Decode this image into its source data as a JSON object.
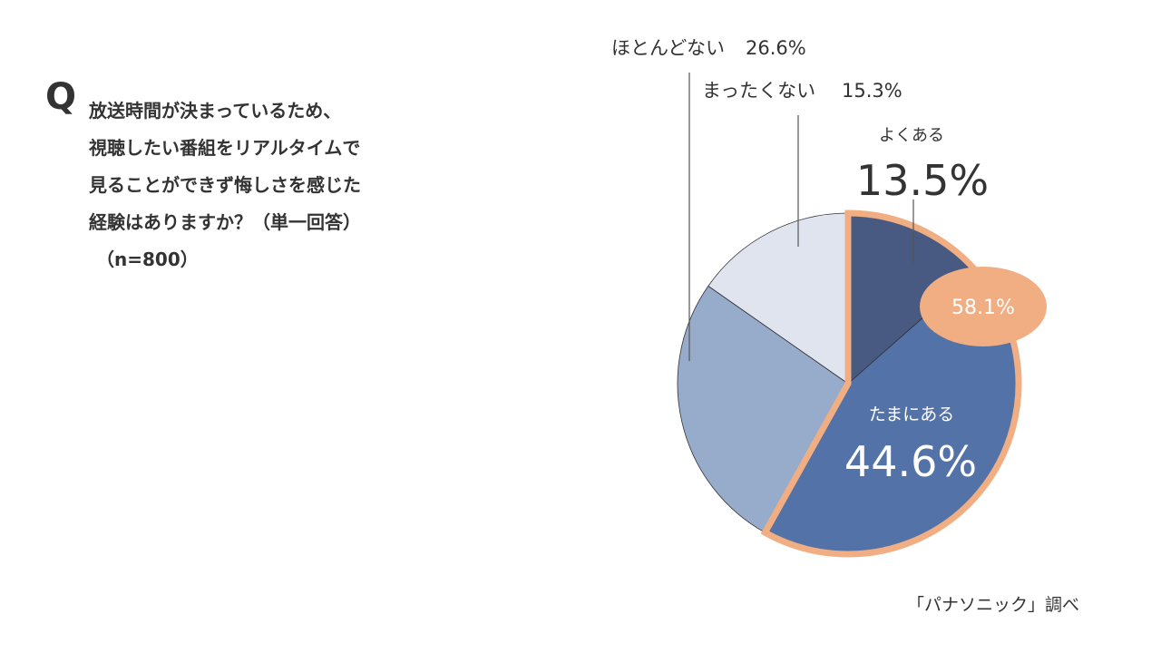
{
  "question": {
    "mark": "Q",
    "lines": [
      "放送時間が決まっているため、",
      "視聴したい番組をリアルタイムで",
      "見ることができず悔しさを感じた",
      "経験はありますか？（単一回答）"
    ],
    "sample": "（n=800）"
  },
  "source": "「パナソニック」調べ",
  "highlight": {
    "label": "58.1%",
    "color": "#f0ae82"
  },
  "chart_data": {
    "type": "pie",
    "start_angle_deg": 0,
    "direction": "clockwise",
    "slices": [
      {
        "label": "よくある",
        "value": 13.5,
        "display": "13.5%",
        "color": "#485a82",
        "highlighted": true
      },
      {
        "label": "たまにある",
        "value": 44.6,
        "display": "44.6%",
        "color": "#5272a8",
        "highlighted": true
      },
      {
        "label": "ほとんどない",
        "value": 26.6,
        "display": "26.6%",
        "color": "#97abca",
        "highlighted": false
      },
      {
        "label": "まったくない",
        "value": 15.3,
        "display": "15.3%",
        "color": "#dfe4ee",
        "highlighted": false
      }
    ],
    "highlight_total": "58.1%"
  }
}
